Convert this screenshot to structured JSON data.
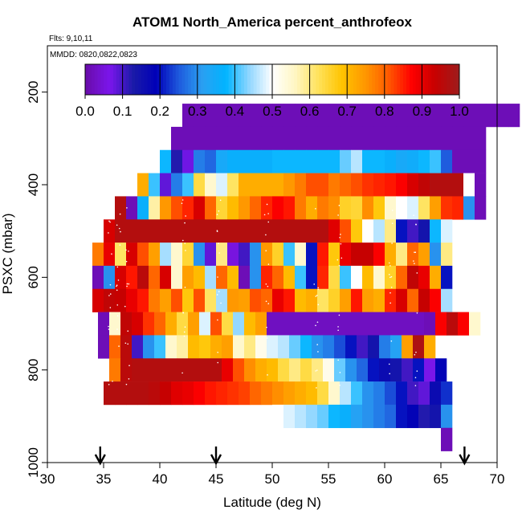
{
  "chart_data": {
    "type": "heatmap",
    "title": "ATOM1 North_America percent_anthrofeox",
    "subtitle_flights": "Flts: 9,10,11",
    "subtitle_dates": "MMDD: 0820,0822,0823",
    "xlabel": "Latitude (deg N)",
    "ylabel": "PSXC (mbar)",
    "xlim": [
      30,
      70
    ],
    "ylim": [
      1000,
      100
    ],
    "x_ticks": [
      "30",
      "35",
      "40",
      "45",
      "50",
      "55",
      "60",
      "65",
      "70"
    ],
    "y_ticks": [
      "200",
      "400",
      "600",
      "800",
      "1000"
    ],
    "colorbar": {
      "min": 0.0,
      "max": 1.0,
      "tick_labels": [
        "0.0",
        "0.1",
        "0.2",
        "0.3",
        "0.4",
        "0.5",
        "0.6",
        "0.7",
        "0.8",
        "0.9",
        "1.0"
      ]
    },
    "arrows_latitude": [
      34.7,
      45.0,
      67.1
    ],
    "lat_start": 35.0,
    "lat_step": 1.0,
    "rows": [
      {
        "p": 250,
        "lat_start": 42.0,
        "lat_step": 1.0,
        "values": [
          0.01,
          0.01,
          0.01,
          0.01,
          0.01,
          0.01,
          0.01,
          0.01,
          0.01,
          0.01,
          0.01,
          0.01,
          0.01,
          0.01,
          0.01,
          0.01,
          0.01,
          0.01,
          0.01,
          0.01,
          0.01,
          0.01,
          0.01,
          0.01,
          0.01,
          0.01,
          0.01,
          0.01,
          0.01,
          0.01
        ]
      },
      {
        "p": 300,
        "lat_start": 41.0,
        "lat_step": 1.0,
        "values": [
          0.01,
          0.01,
          0.01,
          0.01,
          0.01,
          0.01,
          0.01,
          0.01,
          0.01,
          0.01,
          0.01,
          0.01,
          0.01,
          0.01,
          0.01,
          0.01,
          0.01,
          0.01,
          0.01,
          0.01,
          0.01,
          0.01,
          0.01,
          0.01,
          0.01,
          0.01,
          0.01,
          0.01
        ]
      },
      {
        "p": 350,
        "lat_start": 40.0,
        "lat_step": 1.0,
        "values": [
          0.38,
          0.12,
          0.07,
          0.28,
          0.26,
          0.34,
          0.36,
          0.36,
          0.36,
          0.36,
          0.38,
          0.38,
          0.38,
          0.38,
          0.38,
          0.38,
          0.42,
          0.46,
          0.38,
          0.38,
          0.36,
          0.34,
          0.35,
          0.38,
          0.4,
          0.25,
          0.01,
          0.01,
          0.01
        ]
      },
      {
        "p": 400,
        "lat_start": 38.0,
        "lat_step": 1.0,
        "values": [
          0.72,
          0.4,
          0.08,
          0.28,
          0.4,
          0.64,
          0.55,
          0.48,
          0.62,
          0.72,
          0.72,
          0.72,
          0.72,
          0.75,
          0.78,
          0.82,
          0.82,
          0.78,
          0.8,
          0.82,
          0.84,
          0.85,
          0.86,
          0.88,
          0.92,
          0.95,
          0.97,
          0.97,
          0.97,
          0.5,
          0.01
        ]
      },
      {
        "p": 450,
        "lat_start": 36.0,
        "lat_step": 1.0,
        "values": [
          0.97,
          0.01,
          0.36,
          0.58,
          0.75,
          0.82,
          0.85,
          0.92,
          0.8,
          0.65,
          0.7,
          0.75,
          0.8,
          0.85,
          0.88,
          0.86,
          0.78,
          0.72,
          0.78,
          0.76,
          0.66,
          0.65,
          0.76,
          0.68,
          0.55,
          0.5,
          0.48,
          0.62,
          0.74,
          0.84,
          0.85,
          0.3,
          0.01
        ]
      },
      {
        "p": 500,
        "lat_start": 35.0,
        "lat_step": 1.0,
        "values": [
          0.92,
          0.97,
          0.97,
          0.97,
          0.97,
          0.97,
          0.97,
          0.97,
          0.97,
          0.97,
          0.97,
          0.97,
          0.97,
          0.97,
          0.97,
          0.97,
          0.97,
          0.97,
          0.97,
          0.97,
          0.91,
          0.82,
          0.68,
          0.5,
          0.46,
          0.6,
          0.2,
          0.1,
          0.14,
          0.38,
          0.48
        ]
      },
      {
        "p": 550,
        "lat_start": 34.0,
        "lat_step": 1.0,
        "values": [
          0.78,
          0.9,
          0.62,
          0.92,
          0.82,
          0.74,
          0.45,
          0.55,
          0.65,
          0.3,
          0.08,
          0.6,
          0.05,
          0.1,
          0.3,
          0.75,
          0.66,
          0.4,
          0.55,
          0.2,
          0.86,
          0.68,
          0.9,
          0.94,
          0.94,
          0.88,
          0.72,
          0.6,
          0.8,
          0.74,
          0.3,
          0.6
        ]
      },
      {
        "p": 600,
        "lat_start": 34.0,
        "lat_step": 1.0,
        "values": [
          0.01,
          0.3,
          0.92,
          0.86,
          0.96,
          0.8,
          0.92,
          0.55,
          0.74,
          0.7,
          0.45,
          0.8,
          0.7,
          0.01,
          0.3,
          0.85,
          0.8,
          0.7,
          0.4,
          0.2,
          0.85,
          0.64,
          0.4,
          0.5,
          0.7,
          0.55,
          0.66,
          0.8,
          0.95,
          0.9,
          0.72,
          0.2
        ]
      },
      {
        "p": 650,
        "lat_start": 34.0,
        "lat_step": 1.0,
        "values": [
          0.92,
          0.95,
          0.94,
          0.9,
          0.86,
          0.78,
          0.74,
          0.82,
          0.68,
          0.82,
          0.62,
          0.45,
          0.75,
          0.74,
          0.82,
          0.8,
          0.9,
          0.86,
          0.7,
          0.72,
          0.62,
          0.66,
          0.74,
          0.86,
          0.74,
          0.72,
          0.85,
          0.92,
          0.8,
          0.94,
          0.88,
          0.45
        ]
      },
      {
        "p": 700,
        "lat_start": 34.5,
        "lat_step": 1.0,
        "values": [
          0.01,
          0.55,
          0.95,
          0.92,
          0.84,
          0.8,
          0.72,
          0.64,
          0.74,
          0.48,
          0.82,
          0.64,
          0.44,
          0.7,
          0.74,
          0.02,
          0.02,
          0.02,
          0.02,
          0.02,
          0.02,
          0.02,
          0.02,
          0.02,
          0.02,
          0.02,
          0.02,
          0.02,
          0.02,
          0.01,
          0.88,
          0.96,
          0.88,
          0.55
        ]
      },
      {
        "p": 750,
        "lat_start": 34.5,
        "lat_step": 1.0,
        "values": [
          0.01,
          0.8,
          0.96,
          0.1,
          0.3,
          0.4,
          0.55,
          0.58,
          0.7,
          0.68,
          0.72,
          0.74,
          0.55,
          0.6,
          0.52,
          0.48,
          0.46,
          0.42,
          0.38,
          0.3,
          0.28,
          0.24,
          0.2,
          0.1,
          0.14,
          0.28,
          0.32,
          0.74,
          0.98,
          0.72
        ]
      },
      {
        "p": 800,
        "lat_start": 35.5,
        "lat_step": 1.0,
        "values": [
          0.78,
          0.96,
          0.97,
          0.97,
          0.97,
          0.97,
          0.97,
          0.97,
          0.97,
          0.97,
          0.9,
          0.82,
          0.76,
          0.72,
          0.7,
          0.64,
          0.6,
          0.64,
          0.6,
          0.52,
          0.42,
          0.3,
          0.26,
          0.2,
          0.16,
          0.14,
          0.1,
          0.2,
          0.06,
          0.18
        ]
      },
      {
        "p": 850,
        "lat_start": 35.0,
        "lat_step": 1.0,
        "values": [
          0.97,
          0.97,
          0.97,
          0.97,
          0.96,
          0.94,
          0.91,
          0.9,
          0.88,
          0.86,
          0.85,
          0.84,
          0.83,
          0.8,
          0.78,
          0.76,
          0.74,
          0.72,
          0.7,
          0.64,
          0.55,
          0.46,
          0.4,
          0.3,
          0.28,
          0.24,
          0.2,
          0.1,
          0.08,
          0.16,
          0.22
        ]
      },
      {
        "p": 900,
        "lat_start": 50.0,
        "lat_step": 1.0,
        "values": [
          0.5,
          0.48,
          0.46,
          0.44,
          0.42,
          0.38,
          0.36,
          0.32,
          0.3,
          0.28,
          0.26,
          0.2,
          0.18,
          0.12,
          0.14,
          0.3
        ]
      },
      {
        "p": 950,
        "lat_start": 65.0,
        "lat_step": 1.0,
        "values": [
          0.01
        ]
      }
    ],
    "colors": {
      "scale": [
        "#6a0dad",
        "#7b16ec",
        "#1a1aa8",
        "#0000b8",
        "#1f5cde",
        "#2aa0f2",
        "#00b4ff",
        "#90d6ff",
        "#ffffff",
        "#fff6c2",
        "#ffe25a",
        "#ffc400",
        "#ff9800",
        "#ff5a00",
        "#ff0000",
        "#c80000",
        "#a01b1b"
      ],
      "outline": "#000000",
      "white_dots": "#ffffff"
    }
  }
}
